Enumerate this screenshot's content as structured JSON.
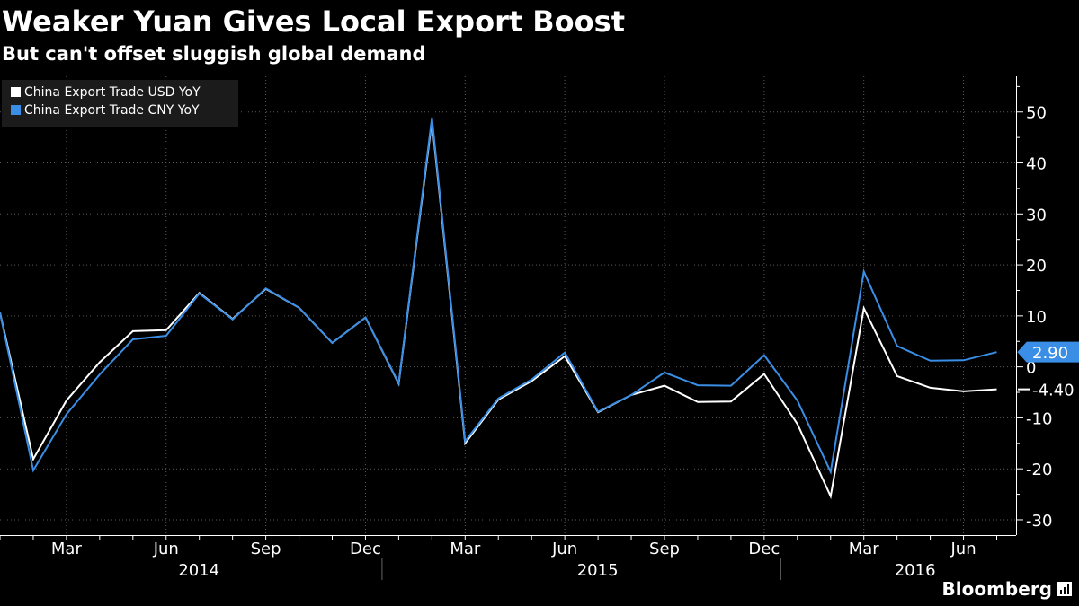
{
  "title": "Weaker Yuan Gives Local Export Boost",
  "subtitle": "But can't offset sluggish global demand",
  "brand": "Bloomberg",
  "colors": {
    "background": "#000000",
    "usd_series": "#ffffff",
    "cny_series": "#3a8ee6",
    "axis": "#ffffff"
  },
  "chart_data": {
    "type": "line",
    "title": "Weaker Yuan Gives Local Export Boost",
    "subtitle": "But can't offset sluggish global demand",
    "ylim": [
      -33,
      57
    ],
    "y_ticks": [
      50,
      40,
      30,
      20,
      10,
      0,
      -10,
      -20,
      -30
    ],
    "y_axis_side": "right",
    "month_ticks": [
      "Mar",
      "Jun",
      "Sep",
      "Dec",
      "Mar",
      "Jun",
      "Sep",
      "Dec",
      "Mar",
      "Jun"
    ],
    "year_labels": [
      "2014",
      "2015",
      "2016"
    ],
    "legend_placement": "top-left",
    "x": [
      "2014-01",
      "2014-02",
      "2014-03",
      "2014-04",
      "2014-05",
      "2014-06",
      "2014-07",
      "2014-08",
      "2014-09",
      "2014-10",
      "2014-11",
      "2014-12",
      "2015-01",
      "2015-02",
      "2015-03",
      "2015-04",
      "2015-05",
      "2015-06",
      "2015-07",
      "2015-08",
      "2015-09",
      "2015-10",
      "2015-11",
      "2015-12",
      "2016-01",
      "2016-02",
      "2016-03",
      "2016-04",
      "2016-05",
      "2016-06",
      "2016-07"
    ],
    "series": [
      {
        "name": "China Export Trade USD YoY",
        "color": "#ffffff",
        "last_value_label": "-4.40",
        "values": [
          10.6,
          -18.1,
          -6.6,
          0.9,
          7.0,
          7.2,
          14.5,
          9.4,
          15.3,
          11.6,
          4.7,
          9.7,
          -3.3,
          48.3,
          -15.0,
          -6.4,
          -2.8,
          2.1,
          -8.9,
          -5.5,
          -3.7,
          -6.9,
          -6.8,
          -1.4,
          -11.2,
          -25.4,
          11.5,
          -1.8,
          -4.1,
          -4.8,
          -4.4
        ]
      },
      {
        "name": "China Export Trade CNY YoY",
        "color": "#3a8ee6",
        "last_value_label": "2.90",
        "values": [
          10.6,
          -20.3,
          -9.3,
          -1.5,
          5.4,
          6.1,
          14.4,
          9.3,
          15.4,
          11.6,
          4.7,
          9.7,
          -3.2,
          48.9,
          -14.6,
          -6.2,
          -2.5,
          2.8,
          -8.8,
          -5.5,
          -1.1,
          -3.6,
          -3.7,
          2.3,
          -6.6,
          -20.6,
          18.7,
          4.1,
          1.2,
          1.3,
          2.9
        ]
      }
    ]
  }
}
